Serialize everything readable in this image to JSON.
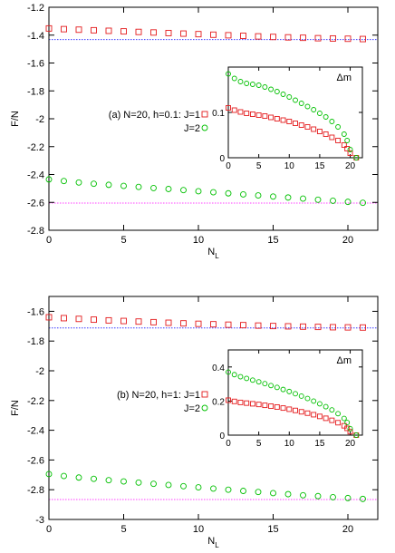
{
  "chart_data": [
    {
      "type": "scatter",
      "ylabel": "F/N",
      "xlabel": "N",
      "xlabel_sub": "L",
      "xlim": [
        0,
        22
      ],
      "ylim": [
        -2.8,
        -1.2
      ],
      "xticks": [
        "0",
        "5",
        "10",
        "15",
        "20"
      ],
      "xtick_values": [
        0,
        5,
        10,
        15,
        20
      ],
      "yticks": [
        "-2.8",
        "-2.6",
        "-2.4",
        "-2.2",
        "-2",
        "-1.8",
        "-1.6",
        "-1.4",
        "-1.2"
      ],
      "ytick_values": [
        -2.8,
        -2.6,
        -2.4,
        -2.2,
        -2.0,
        -1.8,
        -1.6,
        -1.4,
        -1.2
      ],
      "grid": false,
      "legend_position": "center-left",
      "series": [
        {
          "name": "(a) N=20, h=0.1: J=1",
          "marker": "square",
          "color": "#e41a1c",
          "x": [
            0,
            1,
            2,
            3,
            4,
            5,
            6,
            7,
            8,
            9,
            10,
            11,
            12,
            13,
            14,
            15,
            16,
            17,
            18,
            19,
            20,
            21
          ],
          "y": [
            -1.352,
            -1.357,
            -1.361,
            -1.365,
            -1.369,
            -1.373,
            -1.377,
            -1.381,
            -1.385,
            -1.389,
            -1.393,
            -1.397,
            -1.401,
            -1.405,
            -1.409,
            -1.413,
            -1.416,
            -1.419,
            -1.422,
            -1.424,
            -1.426,
            -1.428
          ]
        },
        {
          "name": "J=2",
          "marker": "circle",
          "color": "#00c000",
          "x": [
            0,
            1,
            2,
            3,
            4,
            5,
            6,
            7,
            8,
            9,
            10,
            11,
            12,
            13,
            14,
            15,
            16,
            17,
            18,
            19,
            20,
            21
          ],
          "y": [
            -2.435,
            -2.447,
            -2.457,
            -2.466,
            -2.474,
            -2.482,
            -2.489,
            -2.497,
            -2.504,
            -2.512,
            -2.52,
            -2.527,
            -2.535,
            -2.543,
            -2.55,
            -2.558,
            -2.565,
            -2.573,
            -2.581,
            -2.588,
            -2.596,
            -2.603
          ]
        }
      ],
      "reference_lines": [
        {
          "y": -1.432,
          "color": "#3a3aff",
          "style": "dotted"
        },
        {
          "y": -2.605,
          "color": "#ff40ff",
          "style": "dotted"
        }
      ],
      "inset": {
        "label": "Δm",
        "xlim": [
          0,
          22
        ],
        "ylim": [
          0,
          0.2
        ],
        "xticks": [
          "0",
          "5",
          "10",
          "15",
          "20"
        ],
        "xtick_values": [
          0,
          5,
          10,
          15,
          20
        ],
        "yticks": [
          "0",
          "0.1"
        ],
        "ytick_values": [
          0,
          0.1
        ],
        "series": [
          {
            "marker": "square",
            "color": "#e41a1c",
            "x": [
              0,
              1,
              2,
              3,
              4,
              5,
              6,
              7,
              8,
              9,
              10,
              11,
              12,
              13,
              14,
              15,
              16,
              17,
              18,
              19,
              19.5,
              20,
              21
            ],
            "y": [
              0.11,
              0.105,
              0.101,
              0.098,
              0.096,
              0.094,
              0.092,
              0.089,
              0.086,
              0.083,
              0.08,
              0.076,
              0.072,
              0.068,
              0.063,
              0.058,
              0.052,
              0.045,
              0.038,
              0.028,
              0.02,
              0.01,
              0.0
            ]
          },
          {
            "marker": "circle",
            "color": "#00c000",
            "x": [
              0,
              1,
              2,
              3,
              4,
              5,
              6,
              7,
              8,
              9,
              10,
              11,
              12,
              13,
              14,
              15,
              16,
              17,
              18,
              19,
              19.5,
              20,
              21
            ],
            "y": [
              0.185,
              0.175,
              0.168,
              0.164,
              0.162,
              0.16,
              0.156,
              0.151,
              0.146,
              0.14,
              0.134,
              0.127,
              0.12,
              0.113,
              0.106,
              0.098,
              0.09,
              0.08,
              0.068,
              0.052,
              0.038,
              0.018,
              0.0
            ]
          }
        ]
      }
    },
    {
      "type": "scatter",
      "ylabel": "F/N",
      "xlabel": "N",
      "xlabel_sub": "L",
      "xlim": [
        0,
        22
      ],
      "ylim": [
        -3.0,
        -1.5
      ],
      "xticks": [
        "0",
        "5",
        "10",
        "15",
        "20"
      ],
      "xtick_values": [
        0,
        5,
        10,
        15,
        20
      ],
      "yticks": [
        "-3",
        "-2.8",
        "-2.6",
        "-2.4",
        "-2.2",
        "-2",
        "-1.8",
        "-1.6"
      ],
      "ytick_values": [
        -3.0,
        -2.8,
        -2.6,
        -2.4,
        -2.2,
        -2.0,
        -1.8,
        -1.6
      ],
      "grid": false,
      "legend_position": "center-left",
      "series": [
        {
          "name": "(b) N=20, h=1: J=1",
          "marker": "square",
          "color": "#e41a1c",
          "x": [
            0,
            1,
            2,
            3,
            4,
            5,
            6,
            7,
            8,
            9,
            10,
            11,
            12,
            13,
            14,
            15,
            16,
            17,
            18,
            19,
            20,
            21
          ],
          "y": [
            -1.64,
            -1.646,
            -1.651,
            -1.656,
            -1.661,
            -1.665,
            -1.669,
            -1.673,
            -1.677,
            -1.681,
            -1.684,
            -1.687,
            -1.69,
            -1.693,
            -1.696,
            -1.699,
            -1.701,
            -1.703,
            -1.705,
            -1.707,
            -1.708,
            -1.709
          ]
        },
        {
          "name": "J=2",
          "marker": "circle",
          "color": "#00c000",
          "x": [
            0,
            1,
            2,
            3,
            4,
            5,
            6,
            7,
            8,
            9,
            10,
            11,
            12,
            13,
            14,
            15,
            16,
            17,
            18,
            19,
            20,
            21
          ],
          "y": [
            -2.695,
            -2.708,
            -2.718,
            -2.727,
            -2.736,
            -2.744,
            -2.752,
            -2.76,
            -2.768,
            -2.776,
            -2.784,
            -2.792,
            -2.8,
            -2.808,
            -2.815,
            -2.823,
            -2.83,
            -2.837,
            -2.843,
            -2.85,
            -2.856,
            -2.862
          ]
        }
      ],
      "reference_lines": [
        {
          "y": -1.712,
          "color": "#3a3aff",
          "style": "dotted"
        },
        {
          "y": -2.866,
          "color": "#ff40ff",
          "style": "dotted"
        }
      ],
      "inset": {
        "label": "Δm",
        "xlim": [
          0,
          22
        ],
        "ylim": [
          0,
          0.5
        ],
        "xticks": [
          "0",
          "5",
          "10",
          "15",
          "20"
        ],
        "xtick_values": [
          0,
          5,
          10,
          15,
          20
        ],
        "yticks": [
          "0",
          "0.2",
          "0.4"
        ],
        "ytick_values": [
          0,
          0.2,
          0.4
        ],
        "series": [
          {
            "marker": "square",
            "color": "#e41a1c",
            "x": [
              0,
              1,
              2,
              3,
              4,
              5,
              6,
              7,
              8,
              9,
              10,
              11,
              12,
              13,
              14,
              15,
              16,
              17,
              18,
              19,
              19.5,
              20,
              21
            ],
            "y": [
              0.205,
              0.198,
              0.192,
              0.188,
              0.184,
              0.18,
              0.175,
              0.17,
              0.165,
              0.159,
              0.152,
              0.145,
              0.137,
              0.129,
              0.12,
              0.11,
              0.099,
              0.087,
              0.073,
              0.055,
              0.04,
              0.02,
              0.0
            ]
          },
          {
            "marker": "circle",
            "color": "#00c000",
            "x": [
              0,
              1,
              2,
              3,
              4,
              5,
              6,
              7,
              8,
              9,
              10,
              11,
              12,
              13,
              14,
              15,
              16,
              17,
              18,
              19,
              19.5,
              20,
              21
            ],
            "y": [
              0.37,
              0.355,
              0.343,
              0.333,
              0.323,
              0.313,
              0.302,
              0.291,
              0.28,
              0.268,
              0.256,
              0.243,
              0.229,
              0.215,
              0.2,
              0.184,
              0.167,
              0.148,
              0.126,
              0.098,
              0.074,
              0.038,
              0.0
            ]
          }
        ]
      }
    }
  ]
}
